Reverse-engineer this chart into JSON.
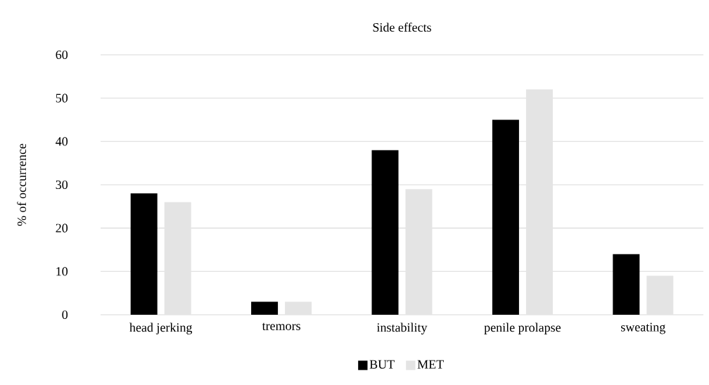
{
  "chart_data": {
    "type": "bar",
    "title": "Side effects",
    "ylabel": "% of occurrence",
    "categories": [
      "head jerking",
      "tremors",
      "instability",
      "penile prolapse",
      "sweating"
    ],
    "series": [
      {
        "name": "BUT",
        "color": "#000000",
        "values": [
          28,
          3,
          38,
          45,
          14
        ]
      },
      {
        "name": "MET",
        "color": "#e4e4e4",
        "values": [
          26,
          3,
          29,
          52,
          9
        ]
      }
    ],
    "ylim": [
      0,
      60
    ],
    "yticks": [
      0,
      10,
      20,
      30,
      40,
      50,
      60
    ],
    "grid": "y",
    "legend": "bottom"
  }
}
